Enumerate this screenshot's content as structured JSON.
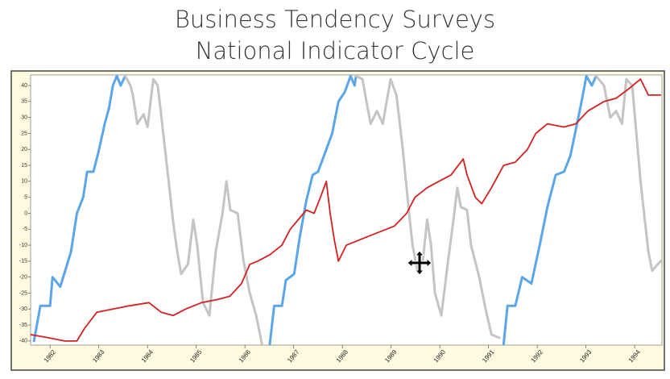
{
  "chart_data": {
    "type": "line",
    "title_lines": [
      "Business Tendency Surveys",
      "National Indicator Cycle"
    ],
    "xlim": [
      1981.6,
      1994.56
    ],
    "xticks": [
      1982,
      1983,
      1984,
      1985,
      1986,
      1987,
      1988,
      1989,
      1990,
      1991,
      1992,
      1993,
      1994
    ],
    "highlight_xtick": 1990,
    "highlight_color": "#b01010",
    "ylim": [
      -41.3,
      43.3
    ],
    "yticks": [
      -40,
      -35,
      -30,
      -25,
      -20,
      -15,
      -10,
      -5,
      0,
      5,
      10,
      15,
      20,
      25,
      30,
      35,
      40
    ],
    "series": [
      {
        "color": "#5aa6e8",
        "width": 3,
        "x": [
          1981.67,
          1981.8,
          1982.0,
          1982.05,
          1982.21,
          1982.43,
          1982.55,
          1982.68,
          1982.76,
          1982.89,
          1982.99,
          1983.12,
          1983.21,
          1983.29,
          1983.37,
          1983.45,
          1983.54,
          1985.0,
          1986.51,
          1986.6,
          1986.76,
          1986.84,
          1987.01,
          1987.12,
          1987.26,
          1987.39,
          1987.5,
          1987.67,
          1987.79,
          1987.92,
          1988.05,
          1988.17,
          1988.25,
          1988.28,
          1990.0,
          1991.31,
          1991.39,
          1991.55,
          1991.69,
          1991.88,
          1992.05,
          1992.21,
          1992.38,
          1992.55,
          1992.68,
          1992.79,
          1992.91,
          1993.01,
          1993.12,
          1993.21
        ],
        "values": [
          -40,
          -29,
          -29,
          -20,
          -23,
          -12,
          0,
          5,
          13,
          13,
          19,
          28,
          33,
          40,
          43,
          40,
          43,
          null,
          -41,
          -29,
          -29,
          -21,
          -19,
          -8,
          4,
          12,
          13,
          20,
          25,
          35,
          38,
          43,
          40,
          43,
          null,
          -41,
          -29,
          -29,
          -20,
          -22,
          -10,
          2,
          12,
          13,
          18,
          26,
          35,
          43,
          40,
          43
        ]
      },
      {
        "color": "#c4c4c4",
        "width": 3,
        "x": [
          1983.54,
          1983.65,
          1983.7,
          1983.79,
          1983.92,
          1984.0,
          1984.12,
          1984.21,
          1984.36,
          1984.53,
          1984.61,
          1984.69,
          1984.83,
          1984.94,
          1985.02,
          1985.14,
          1985.27,
          1985.4,
          1985.54,
          1985.62,
          1985.7,
          1985.85,
          1985.97,
          1986.1,
          1986.23,
          1986.35,
          1987.0,
          1988.28,
          1988.41,
          1988.58,
          1988.71,
          1988.83,
          1988.99,
          1989.11,
          1989.24,
          1989.37,
          1989.44,
          1989.54,
          1989.65,
          1989.74,
          1989.82,
          1989.9,
          1990.03,
          1990.17,
          1990.28,
          1990.36,
          1990.43,
          1990.56,
          1990.64,
          1990.81,
          1990.94,
          1991.06,
          1991.22,
          1992.0,
          1993.21,
          1993.37,
          1993.5,
          1993.62,
          1993.74,
          1993.83,
          1993.95,
          1994.12,
          1994.28,
          1994.36,
          1994.53
        ],
        "values": [
          43,
          40,
          37,
          28,
          31,
          27,
          42,
          40,
          20,
          -3,
          -12,
          -19,
          -16,
          -2,
          -10,
          -28,
          -32,
          -12,
          0,
          10,
          1,
          0,
          -15,
          -25,
          -32,
          -41,
          null,
          43,
          42,
          28,
          32,
          28,
          42,
          37,
          20,
          0,
          -10,
          -18,
          -15,
          -2,
          -10,
          -25,
          -32,
          -15,
          -2,
          8,
          2,
          1,
          -10,
          -20,
          -30,
          -38,
          -39,
          null,
          43,
          40,
          30,
          32,
          28,
          42,
          40,
          10,
          -12,
          -18,
          -15
        ]
      },
      {
        "color": "#d42020",
        "width": 1.8,
        "x": [
          1981.6,
          1981.97,
          1982.3,
          1982.55,
          1982.71,
          1982.96,
          1983.29,
          1983.62,
          1984.03,
          1984.28,
          1984.53,
          1984.78,
          1985.11,
          1985.44,
          1985.69,
          1985.93,
          1986.1,
          1986.26,
          1986.51,
          1986.76,
          1986.93,
          1987.26,
          1987.42,
          1987.55,
          1987.67,
          1987.75,
          1987.83,
          1987.92,
          1988.08,
          1988.41,
          1988.74,
          1989.07,
          1989.32,
          1989.49,
          1989.74,
          1989.98,
          1990.23,
          1990.48,
          1990.56,
          1990.73,
          1990.86,
          1991.06,
          1991.31,
          1991.55,
          1991.8,
          1991.97,
          1992.21,
          1992.55,
          1992.79,
          1993.04,
          1993.37,
          1993.62,
          1993.88,
          1994.12,
          1994.28,
          1994.53
        ],
        "values": [
          -38,
          -39,
          -40,
          -40,
          -36,
          -31,
          -30,
          -29,
          -28,
          -31,
          -32,
          -30,
          -28,
          -27,
          -26,
          -22,
          -16,
          -15,
          -13,
          -10,
          -5,
          1,
          0,
          5,
          10,
          0,
          -8,
          -15,
          -10,
          -8,
          -6,
          -4,
          0,
          5,
          8,
          10,
          12,
          17,
          12,
          5,
          3,
          8,
          15,
          16,
          20,
          25,
          28,
          27,
          28,
          32,
          35,
          36,
          39,
          42,
          37,
          37
        ]
      }
    ]
  }
}
